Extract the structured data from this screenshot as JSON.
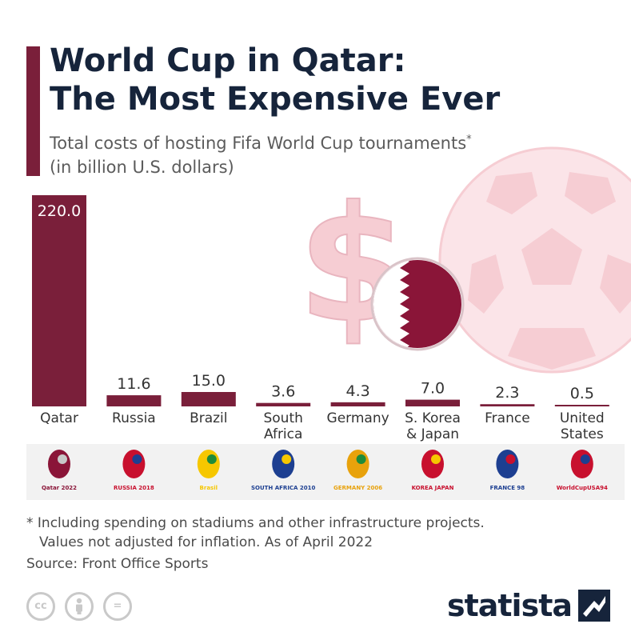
{
  "title_line1": "World Cup in Qatar:",
  "title_line2": "The Most Expensive Ever",
  "subtitle_line1": "Total costs of hosting Fifa World Cup tournaments",
  "subtitle_mark": "*",
  "subtitle_line2": "(in billion U.S. dollars)",
  "footnote_line1": "* Including spending on stadiums and other infrastructure projects.",
  "footnote_line2": "Values not adjusted for inflation. As of April 2022",
  "source": "Source: Front Office Sports",
  "cc_icons": [
    "cc-icon",
    "attribution-icon",
    "no-derivatives-icon"
  ],
  "cc_labels": [
    "cc",
    "",
    "="
  ],
  "brand": "statista",
  "colors": {
    "bar": "#7a1f3a",
    "title": "#16243b",
    "accent": "#7a1f3a",
    "decoration": "#f6cdd3"
  },
  "chart_data": {
    "type": "bar",
    "categories": [
      "Qatar",
      "Russia",
      "Brazil",
      "South\nAfrica",
      "Germany",
      "S. Korea\n& Japan",
      "France",
      "United\nStates"
    ],
    "values": [
      220.0,
      11.6,
      15.0,
      3.6,
      4.3,
      7.0,
      2.3,
      0.5
    ],
    "value_labels": [
      "220.0",
      "11.6",
      "15.0",
      "3.6",
      "4.3",
      "7.0",
      "2.3",
      "0.5"
    ],
    "title": "World Cup in Qatar: The Most Expensive Ever",
    "xlabel": "",
    "ylabel": "",
    "ylim": [
      0,
      220
    ],
    "grid": false,
    "legend": "none"
  },
  "logos": [
    {
      "name": "qatar-2022-logo",
      "text": "Qatar 2022"
    },
    {
      "name": "russia-2018-logo",
      "text": "RUSSIA 2018"
    },
    {
      "name": "brasil-2014-logo",
      "text": "Brasil"
    },
    {
      "name": "south-africa-2010-logo",
      "text": "SOUTH AFRICA 2010"
    },
    {
      "name": "germany-2006-logo",
      "text": "GERMANY 2006"
    },
    {
      "name": "korea-japan-2002-logo",
      "text": "KOREA JAPAN"
    },
    {
      "name": "france-1998-logo",
      "text": "FRANCE 98"
    },
    {
      "name": "usa-1994-logo",
      "text": "WorldCupUSA94"
    }
  ]
}
